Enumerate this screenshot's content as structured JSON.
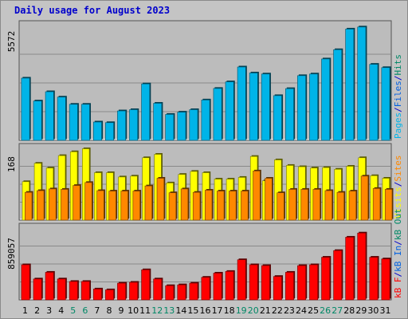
{
  "title": "Daily usage for August 2023",
  "colors": {
    "background": "#c4c4c4",
    "panel": "#bcbcbc",
    "title": "#0000cc",
    "pages": "#00b4e8",
    "files": "#0060e0",
    "hits": "#008866",
    "visits": "#ffff00",
    "sites": "#ff8800",
    "kb_in": "#0060e0",
    "kb_out": "#008866",
    "kb_f": "#ff0000"
  },
  "chart_data": [
    {
      "type": "bar",
      "name": "panel-pages-files-hits",
      "y_max_label": "5572",
      "ylim": [
        0,
        5572
      ],
      "categories": [
        "1",
        "2",
        "3",
        "4",
        "5",
        "6",
        "7",
        "8",
        "9",
        "10",
        "11",
        "12",
        "13",
        "14",
        "15",
        "16",
        "17",
        "18",
        "19",
        "20",
        "21",
        "22",
        "23",
        "24",
        "25",
        "26",
        "27",
        "28",
        "29",
        "30",
        "31"
      ],
      "weekend_days": [
        "5",
        "6",
        "12",
        "13",
        "19",
        "20",
        "26",
        "27"
      ],
      "legend": [
        {
          "text": "Pages",
          "color_key": "pages"
        },
        {
          "text": "/",
          "color_key": "title"
        },
        {
          "text": "Files",
          "color_key": "files"
        },
        {
          "text": "/",
          "color_key": "title"
        },
        {
          "text": "Hits",
          "color_key": "hits"
        }
      ],
      "series": [
        {
          "name": "Pages",
          "values": [
            3020,
            1910,
            2360,
            2100,
            1750,
            1750,
            890,
            860,
            1430,
            1490,
            2740,
            1800,
            1260,
            1370,
            1490,
            1960,
            2520,
            2840,
            3560,
            3270,
            3220,
            2170,
            2510,
            3140,
            3220,
            3950,
            4400,
            5400,
            5500,
            3690,
            3530
          ]
        }
      ]
    },
    {
      "type": "bar",
      "name": "panel-visits-sites",
      "y_max_label": "168",
      "ylim": [
        0,
        168
      ],
      "categories": [
        "1",
        "2",
        "3",
        "4",
        "5",
        "6",
        "7",
        "8",
        "9",
        "10",
        "11",
        "12",
        "13",
        "14",
        "15",
        "16",
        "17",
        "18",
        "19",
        "20",
        "21",
        "22",
        "23",
        "24",
        "25",
        "26",
        "27",
        "28",
        "29",
        "30",
        "31"
      ],
      "legend": [
        {
          "text": "Visits",
          "color_key": "visits"
        },
        {
          "text": "/",
          "color_key": "title"
        },
        {
          "text": "Sites",
          "color_key": "sites"
        }
      ],
      "series": [
        {
          "name": "Visits",
          "values": [
            90,
            133,
            122,
            151,
            160,
            167,
            111,
            111,
            101,
            103,
            146,
            154,
            87,
            107,
            114,
            111,
            96,
            96,
            100,
            149,
            92,
            141,
            128,
            125,
            122,
            123,
            119,
            126,
            146,
            104,
            98
          ]
        },
        {
          "name": "Sites",
          "values": [
            65,
            69,
            73,
            72,
            81,
            88,
            69,
            68,
            68,
            68,
            80,
            98,
            64,
            73,
            65,
            70,
            68,
            68,
            68,
            115,
            98,
            64,
            72,
            72,
            72,
            69,
            65,
            68,
            103,
            74,
            72
          ]
        }
      ]
    },
    {
      "type": "bar",
      "name": "panel-kbytes",
      "y_max_label": "859057",
      "ylim": [
        0,
        859057
      ],
      "categories": [
        "1",
        "2",
        "3",
        "4",
        "5",
        "6",
        "7",
        "8",
        "9",
        "10",
        "11",
        "12",
        "13",
        "14",
        "15",
        "16",
        "17",
        "18",
        "19",
        "20",
        "21",
        "22",
        "23",
        "24",
        "25",
        "26",
        "27",
        "28",
        "29",
        "30",
        "31"
      ],
      "legend": [
        {
          "text": "kB F",
          "color_key": "kb_f"
        },
        {
          "text": "/",
          "color_key": "title"
        },
        {
          "text": "kB In",
          "color_key": "kb_in"
        },
        {
          "text": "/",
          "color_key": "title"
        },
        {
          "text": "kB Out",
          "color_key": "kb_out"
        }
      ],
      "series": [
        {
          "name": "kB F",
          "values": [
            420000,
            250000,
            330000,
            250000,
            220000,
            220000,
            130000,
            120000,
            200000,
            210000,
            360000,
            250000,
            170000,
            180000,
            200000,
            270000,
            320000,
            340000,
            480000,
            420000,
            410000,
            280000,
            330000,
            410000,
            420000,
            510000,
            590000,
            750000,
            800000,
            510000,
            490000
          ]
        }
      ]
    }
  ]
}
